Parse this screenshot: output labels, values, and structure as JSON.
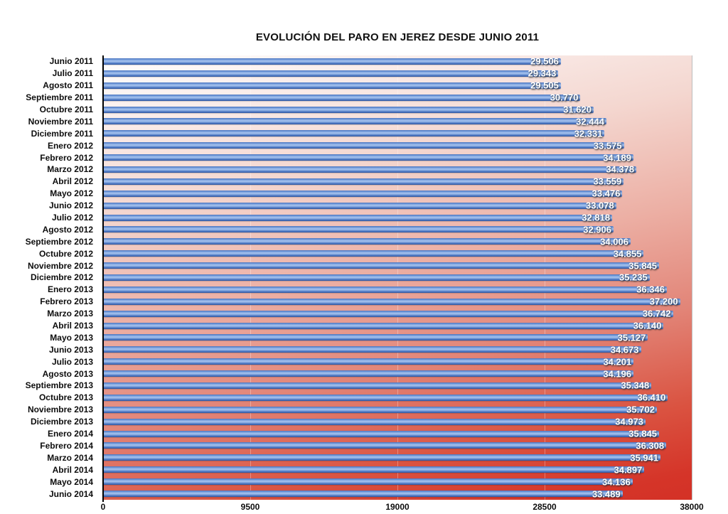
{
  "title": "EVOLUCIÓN DEL PARO EN JEREZ DESDE JUNIO 2011",
  "chart_data": {
    "type": "bar",
    "orientation": "horizontal",
    "title": "EVOLUCIÓN DEL PARO EN JEREZ DESDE JUNIO 2011",
    "xlabel": "",
    "ylabel": "",
    "xlim": [
      0,
      38000
    ],
    "x_ticks": [
      "0",
      "9500",
      "19000",
      "28500",
      "38000"
    ],
    "grid": "faint vertical gridlines at tick positions",
    "legend": "none",
    "bar_color": "#4a74c0",
    "bar_highlight_color": "#a9c4ee",
    "value_label_color": "#ffffff",
    "background_gradient_top": "#ffffff",
    "background_gradient_bottom": "#d43126",
    "categories": [
      "Junio 2011",
      "Julio 2011",
      "Agosto 2011",
      "Septiembre 2011",
      "Octubre 2011",
      "Noviembre 2011",
      "Diciembre 2011",
      "Enero 2012",
      "Febrero 2012",
      "Marzo 2012",
      "Abril 2012",
      "Mayo 2012",
      "Junio 2012",
      "Julio 2012",
      "Agosto 2012",
      "Septiembre 2012",
      "Octubre 2012",
      "Noviembre 2012",
      "Diciembre 2012",
      "Enero 2013",
      "Febrero 2013",
      "Marzo 2013",
      "Abril 2013",
      "Mayo 2013",
      "Junio 2013",
      "Julio 2013",
      "Agosto 2013",
      "Septiembre 2013",
      "Octubre 2013",
      "Noviembre 2013",
      "Diciembre 2013",
      "Enero 2014",
      "Febrero 2014",
      "Marzo 2014",
      "Abril 2014",
      "Mayo 2014",
      "Junio 2014"
    ],
    "values": [
      29506,
      29343,
      29505,
      30770,
      31620,
      32444,
      32331,
      33575,
      34189,
      34378,
      33559,
      33476,
      33078,
      32818,
      32906,
      34006,
      34855,
      35845,
      35235,
      36346,
      37200,
      36742,
      36140,
      35127,
      34673,
      34201,
      34196,
      35348,
      36410,
      35702,
      34973,
      35845,
      36308,
      35941,
      34897,
      34136,
      33489
    ],
    "value_labels": [
      "29.506",
      "29.343",
      "29.505",
      "30.770",
      "31.620",
      "32.444",
      "32.331",
      "33.575",
      "34.189",
      "34.378",
      "33.559",
      "33.476",
      "33.078",
      "32.818",
      "32.906",
      "34.006",
      "34.855",
      "35.845",
      "35.235",
      "36.346",
      "37.200",
      "36.742",
      "36.140",
      "35.127",
      "34.673",
      "34.201",
      "34.196",
      "35.348",
      "36.410",
      "35.702",
      "34.973",
      "35.845",
      "36.308",
      "35.941",
      "34.897",
      "34.136",
      "33.489"
    ]
  }
}
